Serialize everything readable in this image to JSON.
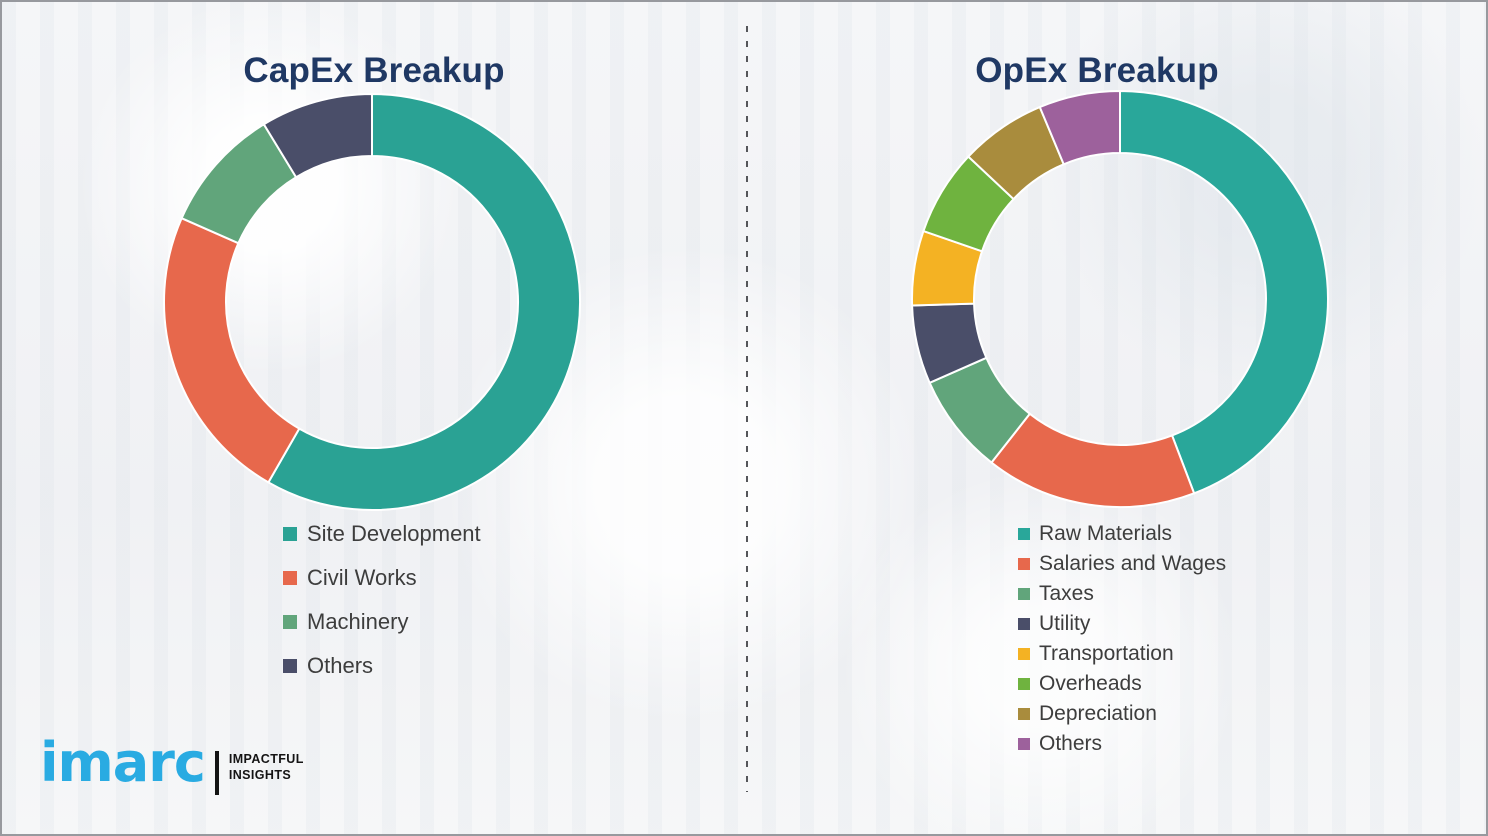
{
  "page": {
    "background_color": "#f2f3f5",
    "border_color": "#97999e",
    "title_color": "#1f3864",
    "legend_text_color": "#3d3d3d"
  },
  "divider": {
    "style": "vertical-dashed-line",
    "color": "#55565a"
  },
  "logo": {
    "brand": "imarc",
    "brand_color": "#29abe2",
    "tagline_line1": "IMPACTFUL",
    "tagline_line2": "INSIGHTS",
    "separator_color": "#141414"
  },
  "chart_data": [
    {
      "type": "pie",
      "subtype": "donut",
      "title": "CapEx Breakup",
      "categories": [
        "Site Development",
        "Civil Works",
        "Machinery",
        "Others"
      ],
      "values": [
        58.3,
        23.3,
        9.7,
        8.7
      ],
      "colors": [
        "#2aa294",
        "#e7684c",
        "#61a57b",
        "#4a4e69"
      ],
      "start_angle_deg": 0,
      "direction": "clockwise",
      "donut_hole_ratio": 0.7,
      "legend_position": "below-left",
      "grid": false
    },
    {
      "type": "pie",
      "subtype": "donut",
      "title": "OpEx Breakup",
      "categories": [
        "Raw Materials",
        "Salaries and Wages",
        "Taxes",
        "Utility",
        "Transportation",
        "Overheads",
        "Depreciation",
        "Others"
      ],
      "values": [
        44.2,
        16.4,
        7.8,
        6.1,
        5.8,
        6.7,
        6.7,
        6.3
      ],
      "colors": [
        "#29a79a",
        "#e7684c",
        "#61a57b",
        "#4a4e69",
        "#f4b223",
        "#6fb33f",
        "#a98c3d",
        "#9d619c"
      ],
      "start_angle_deg": 0,
      "direction": "clockwise",
      "donut_hole_ratio": 0.7,
      "legend_position": "below-left",
      "grid": false
    }
  ]
}
